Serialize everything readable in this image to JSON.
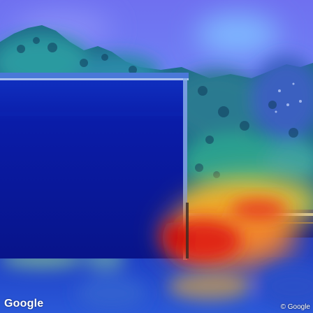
{
  "watermark": {
    "logo_text": "Google",
    "copyright_text": "© Google"
  },
  "heatmap": {
    "colormap": "jet",
    "hot_color": "#d01010",
    "warm_color": "#f0d020",
    "cool_color": "#20c0d0",
    "cold_color": "#0a1a9a"
  }
}
